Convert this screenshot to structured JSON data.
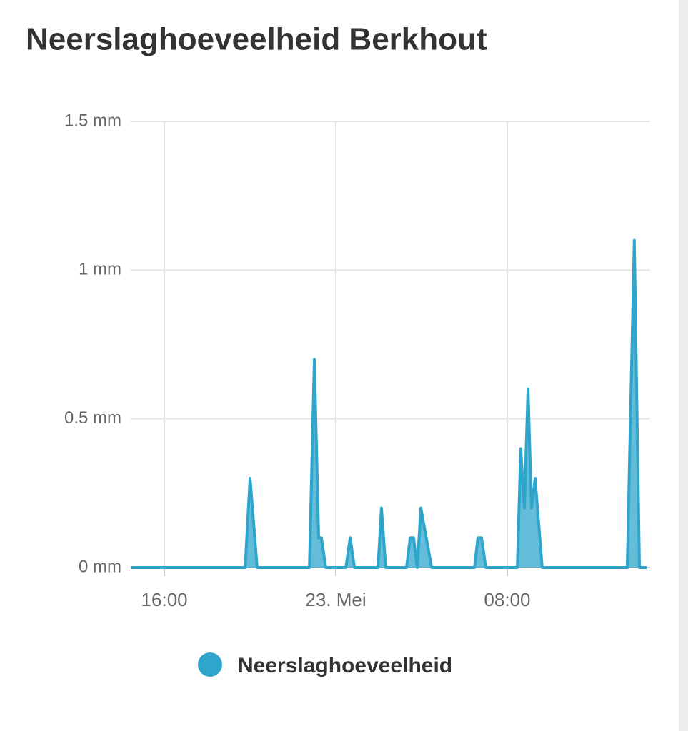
{
  "chart_data": {
    "type": "area",
    "title": "Neerslaghoeveelheid Berkhout",
    "series": [
      {
        "name": "Neerslaghoeveelheid",
        "color": "#2fa5cb",
        "x": [
          14.43,
          19.77,
          20,
          20.33,
          22.77,
          23,
          23.2,
          23.33,
          23.53,
          24.47,
          24.67,
          24.87,
          25.97,
          26.13,
          26.33,
          27.3,
          27.47,
          27.63,
          27.8,
          27.97,
          28.47,
          30.47,
          30.63,
          30.8,
          31,
          32.47,
          32.63,
          32.8,
          32.97,
          33.13,
          33.3,
          33.63,
          37.6,
          37.93,
          38.17,
          38.5
        ],
        "values": [
          0,
          0,
          0.3,
          0,
          0,
          0.7,
          0.1,
          0.1,
          0,
          0,
          0.1,
          0,
          0,
          0.2,
          0,
          0,
          0.1,
          0.1,
          0,
          0.2,
          0,
          0,
          0.1,
          0.1,
          0,
          0,
          0.4,
          0.2,
          0.6,
          0.2,
          0.3,
          0,
          0,
          1.1,
          0,
          0
        ]
      }
    ],
    "xlim": [
      14.43,
      38.67
    ],
    "xticks": [
      {
        "value": 16,
        "label": "16:00"
      },
      {
        "value": 24,
        "label": "23. Mei"
      },
      {
        "value": 32,
        "label": "08:00"
      }
    ],
    "ylim": [
      0,
      1.5
    ],
    "yticks": [
      {
        "value": 0,
        "label": "0 mm"
      },
      {
        "value": 0.5,
        "label": "0.5 mm"
      },
      {
        "value": 1,
        "label": "1 mm"
      },
      {
        "value": 1.5,
        "label": "1.5 mm"
      }
    ],
    "grid": true
  }
}
